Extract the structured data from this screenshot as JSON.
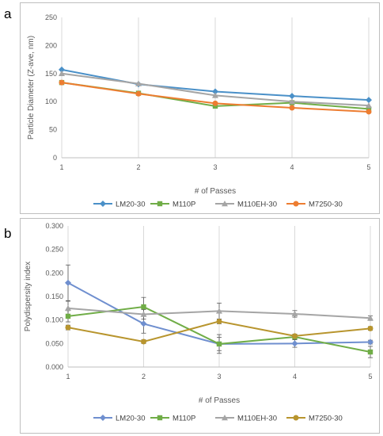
{
  "panel_labels": [
    "a",
    "b"
  ],
  "chart_data": [
    {
      "type": "line",
      "x": [
        1,
        2,
        3,
        4,
        5
      ],
      "xlabel": "# of Passes",
      "ylabel": "Particle Diameter (Z-ave, nm)",
      "ylim": [
        0,
        250
      ],
      "yticks": [
        0,
        50,
        100,
        150,
        200,
        250
      ],
      "ytick_labels": [
        "0",
        "50",
        "100",
        "150",
        "200",
        "250"
      ],
      "grid": "vertical",
      "legend": "bottom",
      "series": [
        {
          "name": "LM20-30",
          "color": "#4a90c8",
          "marker": "diamond",
          "values": [
            157,
            131,
            118,
            110,
            103
          ]
        },
        {
          "name": "M110P",
          "color": "#70ad47",
          "marker": "square",
          "values": [
            134,
            115,
            92,
            98,
            87
          ]
        },
        {
          "name": "M110EH-30",
          "color": "#a5a5a5",
          "marker": "triangle",
          "values": [
            150,
            132,
            111,
            100,
            93
          ]
        },
        {
          "name": "M7250-30",
          "color": "#ed7d31",
          "marker": "circle",
          "values": [
            134,
            114,
            97,
            89,
            82
          ]
        }
      ]
    },
    {
      "type": "line",
      "x": [
        1,
        2,
        3,
        4,
        5
      ],
      "xlabel": "# of Passes",
      "ylabel": "Polydispersity index",
      "ylim": [
        0,
        0.3
      ],
      "yticks": [
        0,
        0.05,
        0.1,
        0.15,
        0.2,
        0.25,
        0.3
      ],
      "ytick_labels": [
        "0.000",
        "0.050",
        "0.100",
        "0.150",
        "0.200",
        "0.250",
        "0.300"
      ],
      "grid": "vertical",
      "legend": "bottom",
      "series": [
        {
          "name": "LM20-30",
          "color": "#6f8fcf",
          "marker": "diamond",
          "values": [
            0.179,
            0.092,
            0.049,
            0.05,
            0.053
          ],
          "errors": [
            0.038,
            0.02,
            0.014,
            0.008,
            0.004
          ]
        },
        {
          "name": "M110P",
          "color": "#70ad47",
          "marker": "square",
          "values": [
            0.108,
            0.128,
            0.049,
            0.064,
            0.032
          ],
          "errors": [
            0.012,
            0.02,
            0.02,
            0.006,
            0.012
          ]
        },
        {
          "name": "M110EH-30",
          "color": "#a5a5a5",
          "marker": "triangle",
          "values": [
            0.125,
            0.112,
            0.119,
            0.113,
            0.104
          ],
          "errors": [
            0.015,
            0.01,
            0.017,
            0.007,
            0.005
          ]
        },
        {
          "name": "M7250-30",
          "color": "#b8952e",
          "marker": "circle",
          "values": [
            0.084,
            0.054,
            0.097,
            0.066,
            0.082
          ],
          "errors": [
            0.005,
            0.004,
            0.005,
            0.004,
            0.004
          ]
        }
      ]
    }
  ]
}
